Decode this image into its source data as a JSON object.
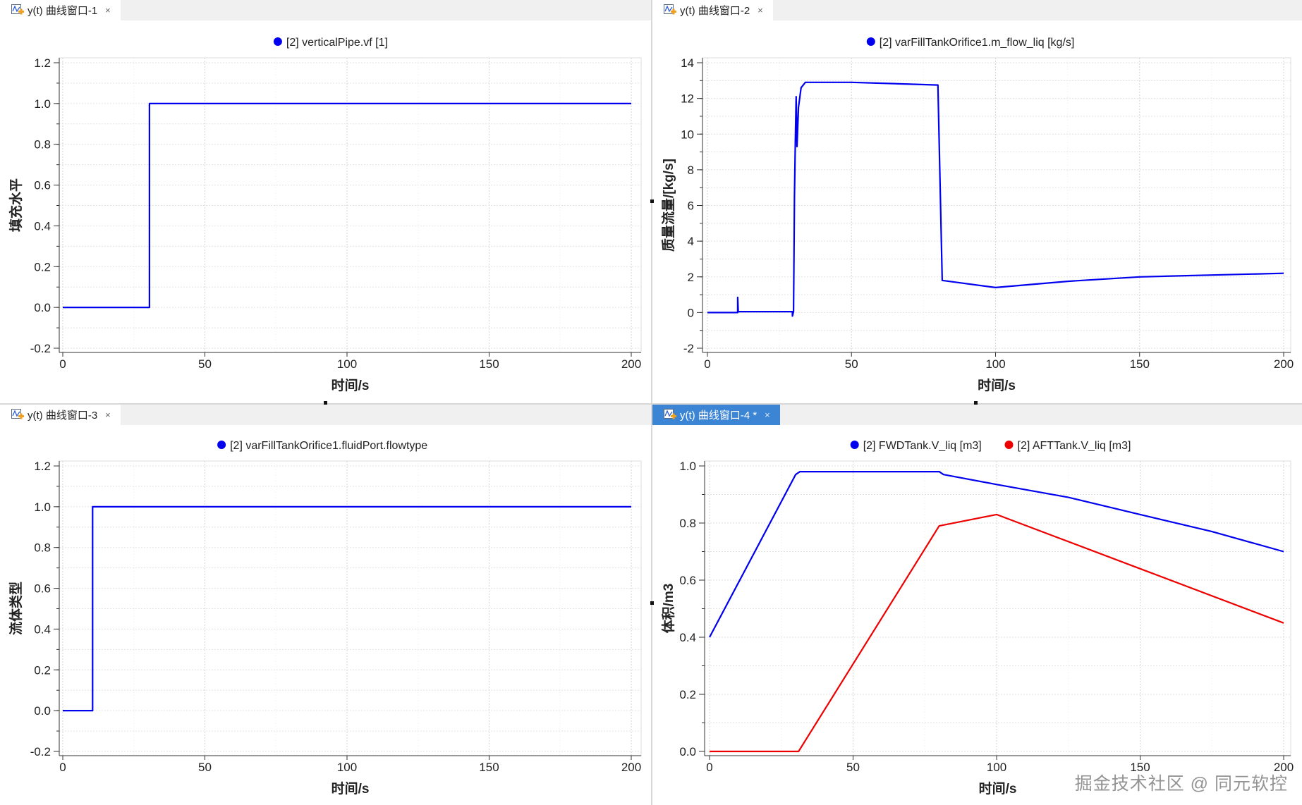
{
  "tabs": [
    {
      "label": "y(t) 曲线窗口-1",
      "close": "×",
      "active": false
    },
    {
      "label": "y(t) 曲线窗口-2",
      "close": "×",
      "active": false
    },
    {
      "label": "y(t) 曲线窗口-3",
      "close": "×",
      "active": false
    },
    {
      "label": "y(t) 曲线窗口-4 *",
      "close": "×",
      "active": true
    }
  ],
  "watermark": "掘金技术社区 @ 同元软控",
  "chart_data": [
    {
      "type": "line",
      "title": "",
      "xlabel": "时间/s",
      "ylabel": "填充水平",
      "xlim": [
        0,
        200
      ],
      "ylim": [
        -0.2,
        1.2
      ],
      "xticks": [
        0,
        50,
        100,
        150,
        200
      ],
      "yticks": [
        -0.2,
        0.0,
        0.2,
        0.4,
        0.6,
        0.8,
        1.0,
        1.2
      ],
      "ydecimals": 1,
      "yminor": 0.1,
      "grid": true,
      "legend": "top-center",
      "series": [
        {
          "name": "[2] verticalPipe.vf [1]",
          "color": "#0000ee",
          "points": [
            [
              0,
              0
            ],
            [
              30.5,
              0
            ],
            [
              30.5,
              1
            ],
            [
              200,
              1
            ]
          ]
        }
      ]
    },
    {
      "type": "line",
      "title": "",
      "xlabel": "时间/s",
      "ylabel": "质量流量/[kg/s]",
      "xlim": [
        0,
        200
      ],
      "ylim": [
        -2,
        14
      ],
      "xticks": [
        0,
        50,
        100,
        150,
        200
      ],
      "yticks": [
        -2,
        0,
        2,
        4,
        6,
        8,
        10,
        12,
        14
      ],
      "ydecimals": 0,
      "yminor": 1,
      "grid": true,
      "legend": "top-center",
      "series": [
        {
          "name": "[2] varFillTankOrifice1.m_flow_liq [kg/s]",
          "color": "#0000ee",
          "points": [
            [
              0,
              0
            ],
            [
              10.5,
              0
            ],
            [
              10.5,
              0.85
            ],
            [
              10.7,
              0.05
            ],
            [
              29.5,
              0.05
            ],
            [
              29.5,
              -0.2
            ],
            [
              29.9,
              0.05
            ],
            [
              30.2,
              6.5
            ],
            [
              30.5,
              9.5
            ],
            [
              30.8,
              12.1
            ],
            [
              31.1,
              9.3
            ],
            [
              31.6,
              11.5
            ],
            [
              32.5,
              12.6
            ],
            [
              34,
              12.9
            ],
            [
              50,
              12.9
            ],
            [
              80,
              12.75
            ],
            [
              81.5,
              1.8
            ],
            [
              100,
              1.4
            ],
            [
              125,
              1.75
            ],
            [
              150,
              2.0
            ],
            [
              175,
              2.1
            ],
            [
              200,
              2.2
            ]
          ]
        }
      ]
    },
    {
      "type": "line",
      "title": "",
      "xlabel": "时间/s",
      "ylabel": "流体类型",
      "xlim": [
        0,
        200
      ],
      "ylim": [
        -0.2,
        1.2
      ],
      "xticks": [
        0,
        50,
        100,
        150,
        200
      ],
      "yticks": [
        -0.2,
        0.0,
        0.2,
        0.4,
        0.6,
        0.8,
        1.0,
        1.2
      ],
      "ydecimals": 1,
      "yminor": 0.1,
      "grid": true,
      "legend": "top-center",
      "series": [
        {
          "name": "[2] varFillTankOrifice1.fluidPort.flowtype",
          "color": "#0000ee",
          "points": [
            [
              0,
              0
            ],
            [
              10.5,
              0
            ],
            [
              10.5,
              1
            ],
            [
              200,
              1
            ]
          ]
        }
      ]
    },
    {
      "type": "line",
      "title": "",
      "xlabel": "时间/s",
      "ylabel": "体积/m3",
      "xlim": [
        0,
        200
      ],
      "ylim": [
        0,
        1.0
      ],
      "xticks": [
        0,
        50,
        100,
        150,
        200
      ],
      "yticks": [
        0.0,
        0.2,
        0.4,
        0.6,
        0.8,
        1.0
      ],
      "ydecimals": 1,
      "yminor": 0.1,
      "grid": true,
      "legend": "top-center",
      "series": [
        {
          "name": "[2] FWDTank.V_liq [m3]",
          "color": "#0000ee",
          "points": [
            [
              0,
              0.4
            ],
            [
              30,
              0.97
            ],
            [
              31.5,
              0.98
            ],
            [
              80,
              0.98
            ],
            [
              81.5,
              0.97
            ],
            [
              100,
              0.935
            ],
            [
              125,
              0.89
            ],
            [
              150,
              0.83
            ],
            [
              175,
              0.77
            ],
            [
              200,
              0.7
            ]
          ]
        },
        {
          "name": "[2] AFTTank.V_liq [m3]",
          "color": "#ee0000",
          "points": [
            [
              0,
              0
            ],
            [
              31,
              0
            ],
            [
              80,
              0.79
            ],
            [
              100,
              0.83
            ],
            [
              150,
              0.64
            ],
            [
              200,
              0.45
            ]
          ]
        }
      ]
    }
  ]
}
